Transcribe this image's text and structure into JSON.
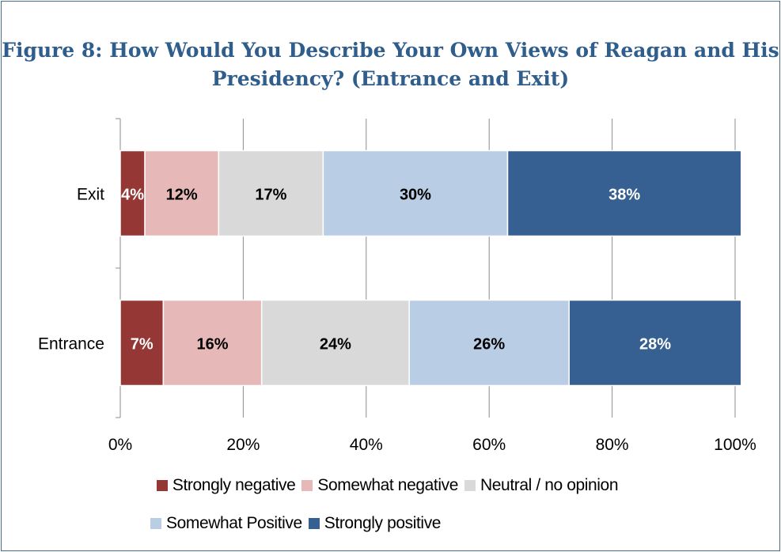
{
  "title_line1": "Figure 8: How Would You Describe Your Own Views of Reagan and His",
  "title_line2": "Presidency? (Entrance and Exit)",
  "chart_data": {
    "type": "bar",
    "orientation": "horizontal",
    "stacked": true,
    "percent_stacked": true,
    "categories": [
      "Exit",
      "Entrance"
    ],
    "series": [
      {
        "name": "Strongly negative",
        "color": "#953735",
        "label_color": "#ffffff",
        "values": [
          4,
          7
        ],
        "labels": [
          "4%",
          "7%"
        ]
      },
      {
        "name": "Somewhat negative",
        "color": "#e6b9b8",
        "label_color": "#000000",
        "values": [
          12,
          16
        ],
        "labels": [
          "12%",
          "16%"
        ]
      },
      {
        "name": "Neutral / no opinion",
        "color": "#d9d9d9",
        "label_color": "#000000",
        "values": [
          17,
          24
        ],
        "labels": [
          "17%",
          "24%"
        ]
      },
      {
        "name": "Somewhat Positive",
        "color": "#b9cde5",
        "label_color": "#000000",
        "values": [
          30,
          26
        ],
        "labels": [
          "30%",
          "26%"
        ]
      },
      {
        "name": "Strongly positive",
        "color": "#376092",
        "label_color": "#ffffff",
        "values": [
          38,
          28
        ],
        "labels": [
          "38%",
          "28%"
        ]
      }
    ],
    "xlim": [
      0,
      100
    ],
    "x_ticks": [
      "0%",
      "20%",
      "40%",
      "60%",
      "80%",
      "100%"
    ],
    "grid": true,
    "legend_position": "bottom"
  }
}
